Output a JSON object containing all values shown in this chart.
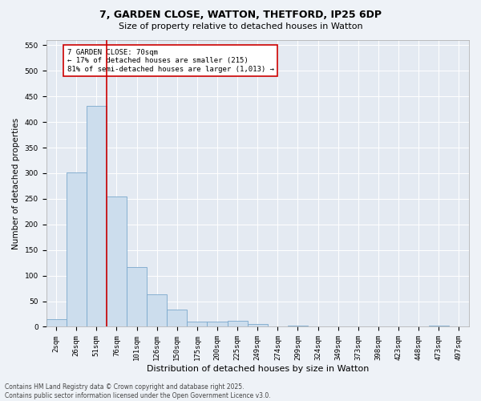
{
  "title_line1": "7, GARDEN CLOSE, WATTON, THETFORD, IP25 6DP",
  "title_line2": "Size of property relative to detached houses in Watton",
  "xlabel": "Distribution of detached houses by size in Watton",
  "ylabel": "Number of detached properties",
  "categories": [
    "2sqm",
    "26sqm",
    "51sqm",
    "76sqm",
    "101sqm",
    "126sqm",
    "150sqm",
    "175sqm",
    "200sqm",
    "225sqm",
    "249sqm",
    "274sqm",
    "299sqm",
    "324sqm",
    "349sqm",
    "373sqm",
    "398sqm",
    "423sqm",
    "448sqm",
    "473sqm",
    "497sqm"
  ],
  "values": [
    15,
    302,
    432,
    254,
    117,
    64,
    33,
    10,
    10,
    11,
    5,
    0,
    3,
    0,
    0,
    0,
    0,
    0,
    0,
    3,
    0
  ],
  "bar_color": "#ccdded",
  "bar_edge_color": "#7aa8cc",
  "vline_x": 2.5,
  "vline_color": "#cc0000",
  "annotation_text": "7 GARDEN CLOSE: 70sqm\n← 17% of detached houses are smaller (215)\n81% of semi-detached houses are larger (1,013) →",
  "annotation_box_color": "#ffffff",
  "annotation_box_edge": "#cc0000",
  "ylim": [
    0,
    560
  ],
  "yticks": [
    0,
    50,
    100,
    150,
    200,
    250,
    300,
    350,
    400,
    450,
    500,
    550
  ],
  "footer_line1": "Contains HM Land Registry data © Crown copyright and database right 2025.",
  "footer_line2": "Contains public sector information licensed under the Open Government Licence v3.0.",
  "background_color": "#eef2f7",
  "plot_bg_color": "#e4eaf2",
  "grid_color": "#ffffff",
  "title1_fontsize": 9,
  "title2_fontsize": 8,
  "xlabel_fontsize": 8,
  "ylabel_fontsize": 7.5,
  "tick_fontsize": 6.5,
  "annot_fontsize": 6.5,
  "footer_fontsize": 5.5
}
